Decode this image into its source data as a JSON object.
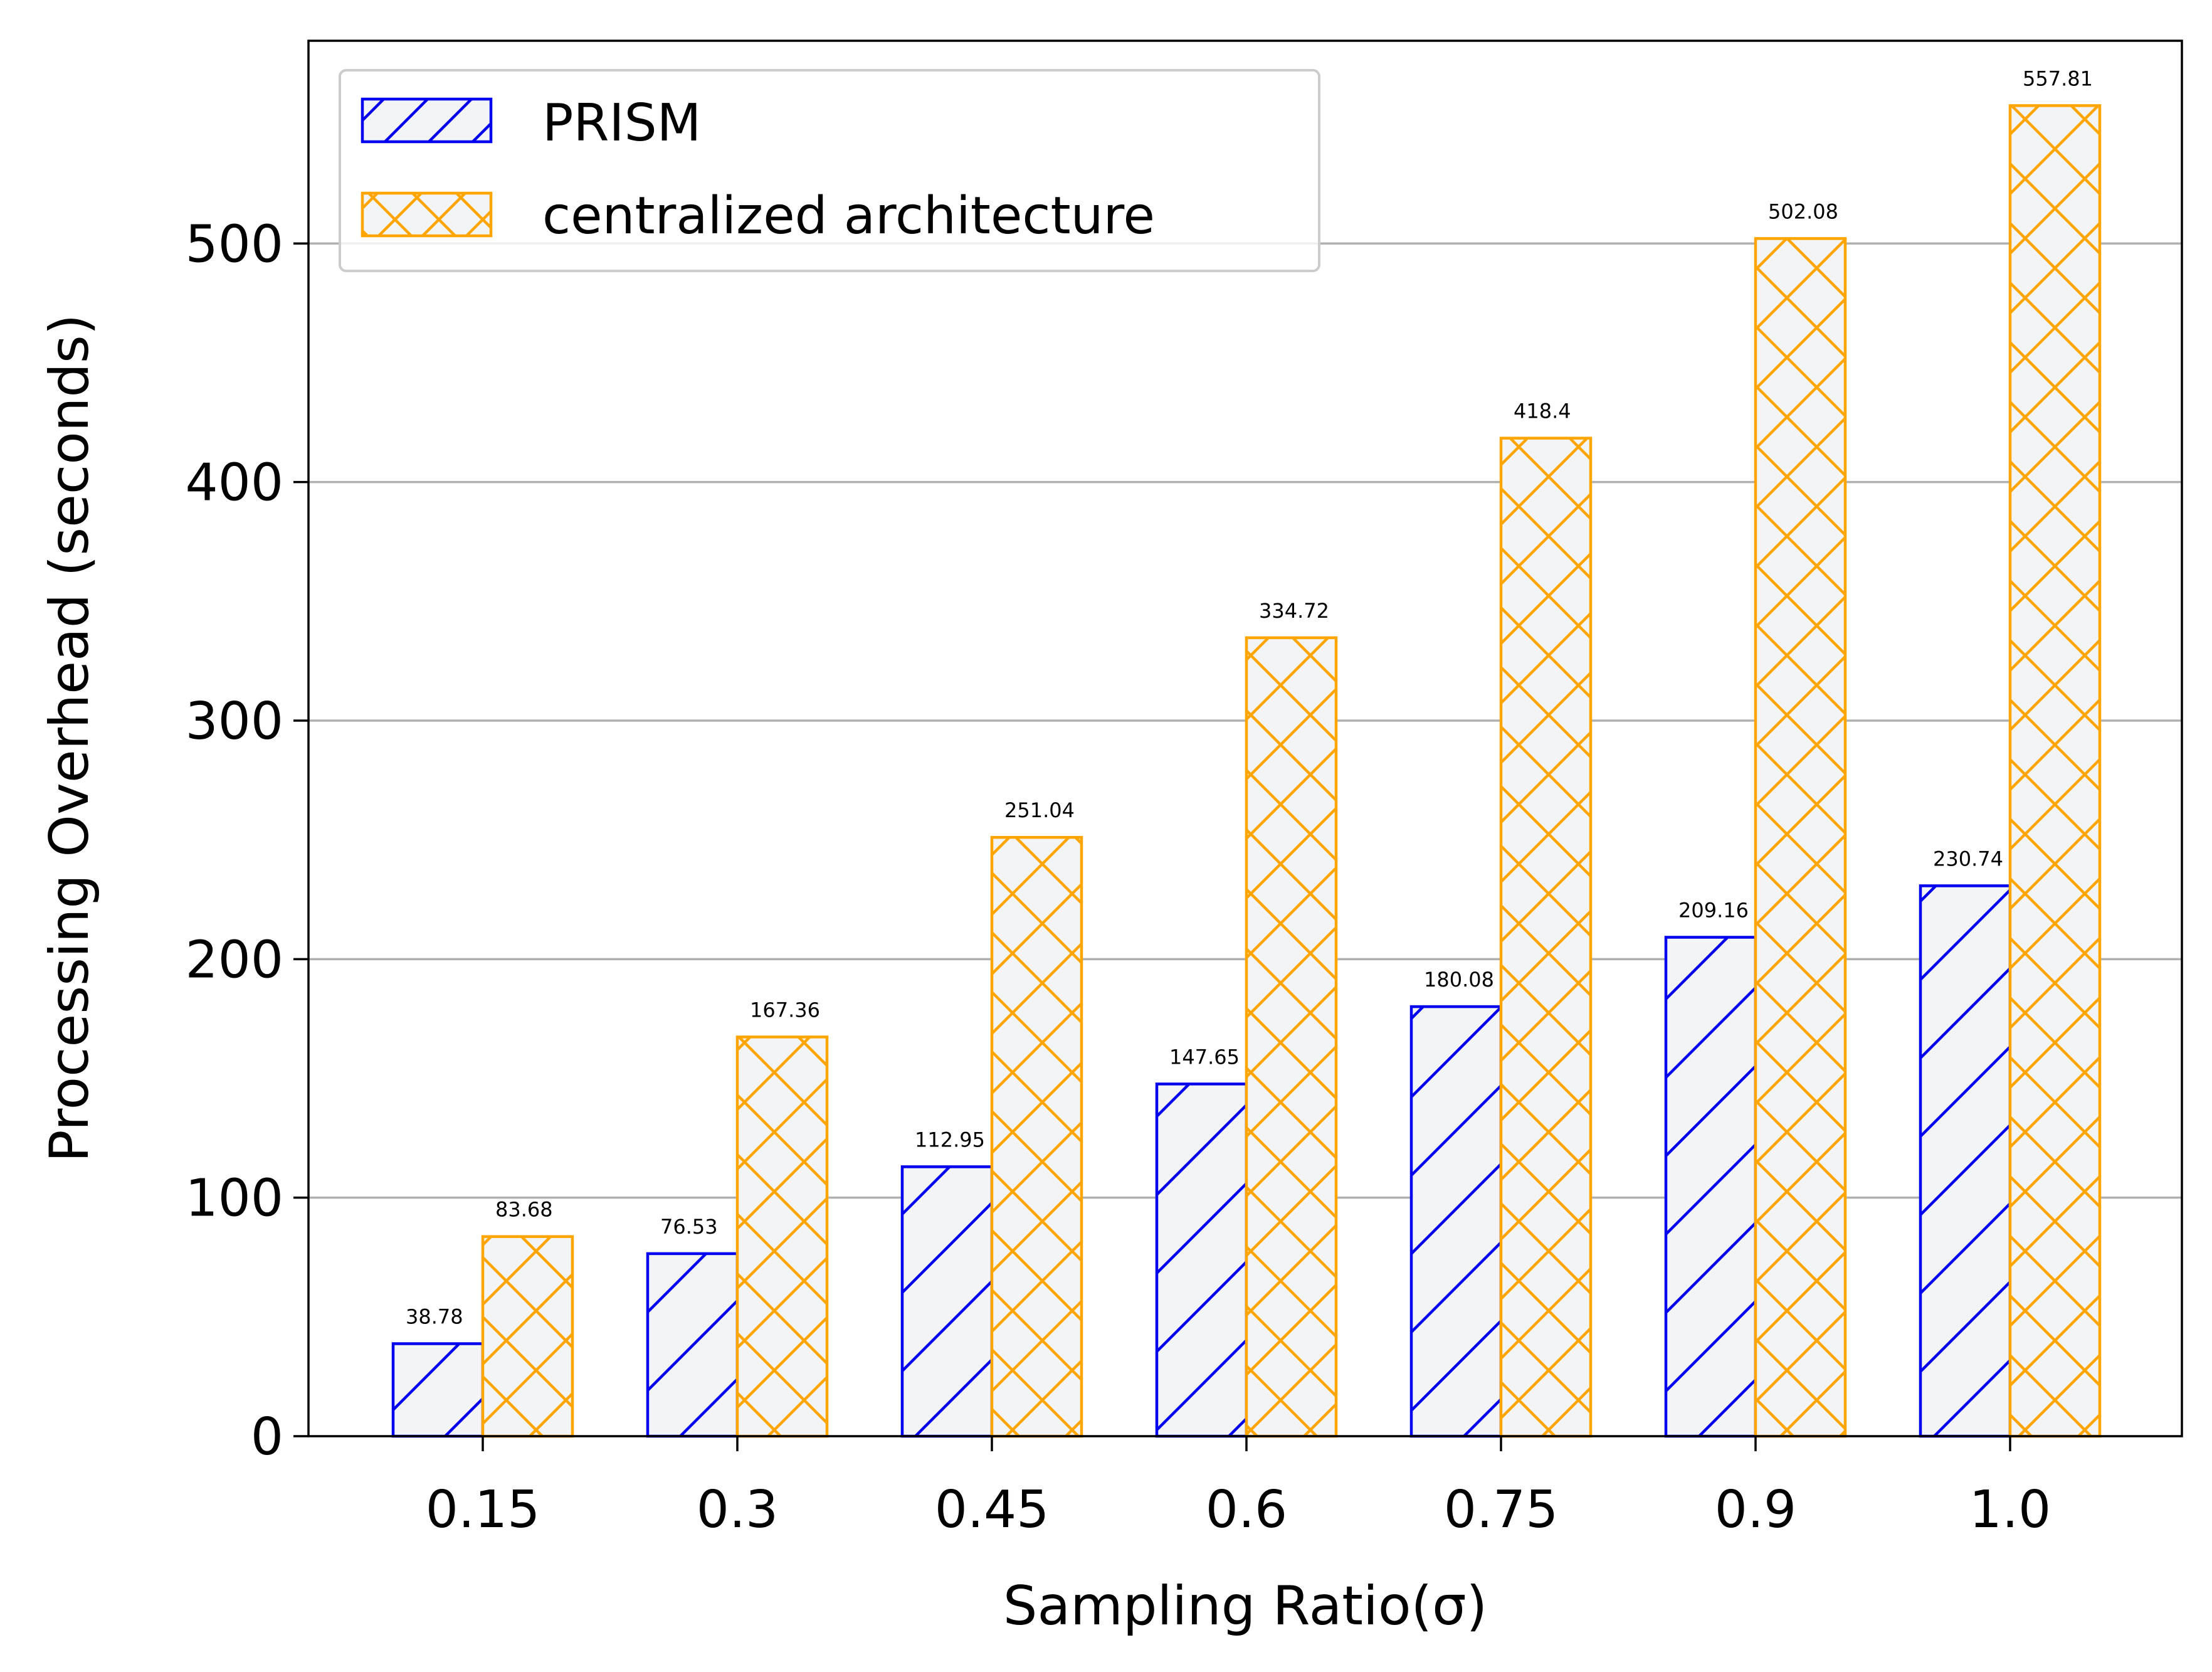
{
  "chart_data": {
    "type": "bar",
    "categories": [
      "0.15",
      "0.3",
      "0.45",
      "0.6",
      "0.75",
      "0.9",
      "1.0"
    ],
    "series": [
      {
        "name": "PRISM",
        "values": [
          38.78,
          76.53,
          112.95,
          147.65,
          180.08,
          209.16,
          230.74
        ],
        "labels": [
          "38.78",
          "76.53",
          "112.95",
          "147.65",
          "180.08",
          "209.16",
          "230.74"
        ],
        "color": "#0000ee",
        "fill": "#f3f4f6",
        "hatch": "diagonal"
      },
      {
        "name": "centralized architecture",
        "values": [
          83.68,
          167.36,
          251.04,
          334.72,
          418.4,
          502.08,
          557.81
        ],
        "labels": [
          "83.68",
          "167.36",
          "251.04",
          "334.72",
          "418.4",
          "502.08",
          "557.81"
        ],
        "color": "#ffa500",
        "fill": "#f3f4f6",
        "hatch": "crosshatch"
      }
    ],
    "title": "",
    "xlabel": "Sampling Ratio(σ)",
    "ylabel": "Processing Overhead (seconds)",
    "ylim": [
      0,
      585
    ],
    "yticks": [
      "0",
      "100",
      "200",
      "300",
      "400",
      "500"
    ],
    "grid": "horizontal",
    "legend_position": "top-left"
  }
}
